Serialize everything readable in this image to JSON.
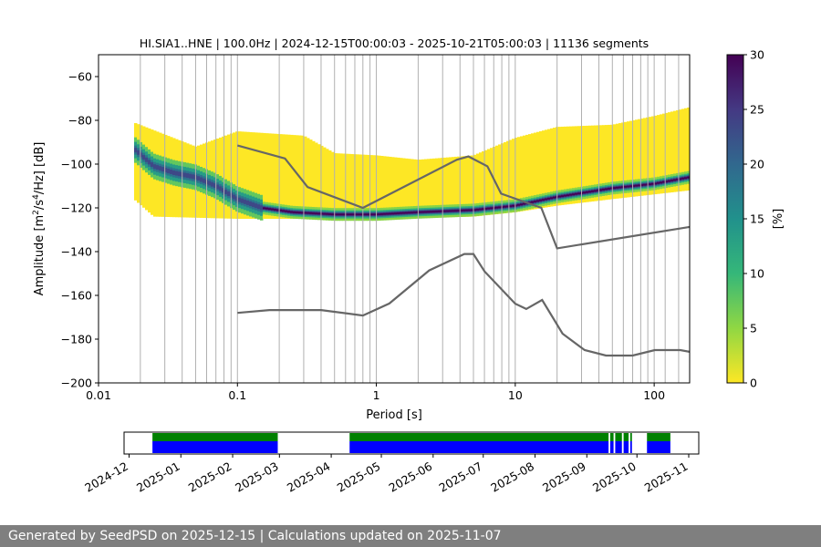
{
  "chart_data": {
    "type": "heatmap",
    "title": "HI.SIA1..HNE | 100.0Hz | 2024-12-15T00:00:03 - 2025-10-21T05:00:03 | 11136 segments",
    "xlabel": "Period [s]",
    "ylabel_main": "Amplitude [m",
    "ylabel_sup1": "2",
    "ylabel_mid": "/s",
    "ylabel_sup2": "4",
    "ylabel_end": "/Hz] [dB]",
    "x_scale": "log",
    "xlim": [
      0.01,
      180
    ],
    "ylim": [
      -200,
      -50
    ],
    "x_ticks": [
      {
        "value": 0.01,
        "label": "0.01"
      },
      {
        "value": 0.1,
        "label": "0.1"
      },
      {
        "value": 1,
        "label": "1"
      },
      {
        "value": 10,
        "label": "10"
      },
      {
        "value": 100,
        "label": "100"
      }
    ],
    "y_ticks": [
      {
        "value": -60,
        "label": "−60"
      },
      {
        "value": -80,
        "label": "−80"
      },
      {
        "value": -100,
        "label": "−100"
      },
      {
        "value": -120,
        "label": "−120"
      },
      {
        "value": -140,
        "label": "−140"
      },
      {
        "value": -160,
        "label": "−160"
      },
      {
        "value": -180,
        "label": "−180"
      },
      {
        "value": -200,
        "label": "−200"
      }
    ],
    "period_gridlines": [
      0.02,
      0.03,
      0.04,
      0.05,
      0.06,
      0.07,
      0.08,
      0.09,
      0.1,
      0.2,
      0.3,
      0.4,
      0.5,
      0.6,
      0.7,
      0.8,
      0.9,
      1,
      2,
      3,
      4,
      5,
      6,
      7,
      8,
      9,
      10,
      20,
      30,
      40,
      50,
      60,
      70,
      80,
      90,
      100,
      120,
      150
    ],
    "psd_density_bands": {
      "period_min": 0.018,
      "period_max": 180,
      "density_unit": "%",
      "mode_curve": [
        {
          "period": 0.018,
          "db": -93
        },
        {
          "period": 0.025,
          "db": -101
        },
        {
          "period": 0.035,
          "db": -104
        },
        {
          "period": 0.05,
          "db": -106
        },
        {
          "period": 0.07,
          "db": -110
        },
        {
          "period": 0.1,
          "db": -116
        },
        {
          "period": 0.15,
          "db": -120
        },
        {
          "period": 0.25,
          "db": -122
        },
        {
          "period": 0.5,
          "db": -123
        },
        {
          "period": 1,
          "db": -123
        },
        {
          "period": 2,
          "db": -122
        },
        {
          "period": 5,
          "db": -121
        },
        {
          "period": 10,
          "db": -119
        },
        {
          "period": 20,
          "db": -115
        },
        {
          "period": 50,
          "db": -111
        },
        {
          "period": 100,
          "db": -109
        },
        {
          "period": 180,
          "db": -106
        }
      ],
      "upper_envelope": [
        {
          "period": 0.018,
          "db": -81
        },
        {
          "period": 0.05,
          "db": -92
        },
        {
          "period": 0.1,
          "db": -85
        },
        {
          "period": 0.3,
          "db": -87
        },
        {
          "period": 0.5,
          "db": -95
        },
        {
          "period": 1,
          "db": -96
        },
        {
          "period": 2,
          "db": -98
        },
        {
          "period": 5,
          "db": -96
        },
        {
          "period": 10,
          "db": -88
        },
        {
          "period": 20,
          "db": -83
        },
        {
          "period": 50,
          "db": -82
        },
        {
          "period": 100,
          "db": -78
        },
        {
          "period": 180,
          "db": -74
        }
      ],
      "lower_envelope": [
        {
          "period": 0.018,
          "db": -116
        },
        {
          "period": 0.025,
          "db": -124
        },
        {
          "period": 0.1,
          "db": -125
        },
        {
          "period": 1,
          "db": -125
        },
        {
          "period": 5,
          "db": -124
        },
        {
          "period": 10,
          "db": -122
        },
        {
          "period": 20,
          "db": -119
        },
        {
          "period": 50,
          "db": -116
        },
        {
          "period": 180,
          "db": -112
        }
      ]
    },
    "nhnm": [
      {
        "period": 0.1,
        "db": -91.5
      },
      {
        "period": 0.22,
        "db": -97.4
      },
      {
        "period": 0.32,
        "db": -110.5
      },
      {
        "period": 0.8,
        "db": -120
      },
      {
        "period": 3.8,
        "db": -98
      },
      {
        "period": 4.6,
        "db": -96.5
      },
      {
        "period": 6.3,
        "db": -101
      },
      {
        "period": 7.9,
        "db": -113.5
      },
      {
        "period": 15.4,
        "db": -120
      },
      {
        "period": 20,
        "db": -138.5
      },
      {
        "period": 180,
        "db": -128.7
      }
    ],
    "nlnm": [
      {
        "period": 0.1,
        "db": -168
      },
      {
        "period": 0.17,
        "db": -166.7
      },
      {
        "period": 0.4,
        "db": -166.7
      },
      {
        "period": 0.8,
        "db": -169.2
      },
      {
        "period": 1.24,
        "db": -163.7
      },
      {
        "period": 2.4,
        "db": -148.6
      },
      {
        "period": 4.3,
        "db": -141.1
      },
      {
        "period": 5,
        "db": -141.1
      },
      {
        "period": 6,
        "db": -149
      },
      {
        "period": 10,
        "db": -163.8
      },
      {
        "period": 12,
        "db": -166.2
      },
      {
        "period": 15.6,
        "db": -162.1
      },
      {
        "period": 21.9,
        "db": -177.5
      },
      {
        "period": 31.6,
        "db": -185
      },
      {
        "period": 45,
        "db": -187.5
      },
      {
        "period": 70,
        "db": -187.5
      },
      {
        "period": 101,
        "db": -185
      },
      {
        "period": 154,
        "db": -185
      },
      {
        "period": 180,
        "db": -185.8
      }
    ],
    "colorbar": {
      "label": "[%]",
      "range": [
        0,
        30
      ],
      "ticks": [
        {
          "value": 0,
          "label": "0"
        },
        {
          "value": 5,
          "label": "5"
        },
        {
          "value": 10,
          "label": "10"
        },
        {
          "value": 15,
          "label": "15"
        },
        {
          "value": 20,
          "label": "20"
        },
        {
          "value": 25,
          "label": "25"
        },
        {
          "value": 30,
          "label": "30"
        }
      ],
      "stops": [
        "#fde725",
        "#90d743",
        "#35b779",
        "#21918c",
        "#31688e",
        "#443983",
        "#440154"
      ]
    },
    "timeline": {
      "start": "2024-11-28",
      "end": "2025-11-07",
      "date_ticks": [
        {
          "date": "2024-12-01",
          "label": "2024-12"
        },
        {
          "date": "2025-01-01",
          "label": "2025-01"
        },
        {
          "date": "2025-02-01",
          "label": "2025-02"
        },
        {
          "date": "2025-03-01",
          "label": "2025-03"
        },
        {
          "date": "2025-04-01",
          "label": "2025-04"
        },
        {
          "date": "2025-05-01",
          "label": "2025-05"
        },
        {
          "date": "2025-06-01",
          "label": "2025-06"
        },
        {
          "date": "2025-07-01",
          "label": "2025-07"
        },
        {
          "date": "2025-08-01",
          "label": "2025-08"
        },
        {
          "date": "2025-09-01",
          "label": "2025-09"
        },
        {
          "date": "2025-10-01",
          "label": "2025-10"
        },
        {
          "date": "2025-11-01",
          "label": "2025-11"
        }
      ],
      "data_available": [
        [
          "2024-12-15",
          "2025-02-28"
        ],
        [
          "2025-04-12",
          "2025-09-14"
        ],
        [
          "2025-09-15",
          "2025-09-17"
        ],
        [
          "2025-09-18",
          "2025-09-22"
        ],
        [
          "2025-09-23",
          "2025-09-26"
        ],
        [
          "2025-09-27",
          "2025-09-28"
        ],
        [
          "2025-10-07",
          "2025-10-21"
        ]
      ],
      "psd_available": [
        [
          "2024-12-15",
          "2025-02-28"
        ],
        [
          "2025-04-12",
          "2025-09-14"
        ],
        [
          "2025-09-15",
          "2025-09-17"
        ],
        [
          "2025-09-18",
          "2025-09-22"
        ],
        [
          "2025-09-23",
          "2025-09-26"
        ],
        [
          "2025-09-27",
          "2025-09-28"
        ],
        [
          "2025-10-07",
          "2025-10-21"
        ]
      ],
      "data_color": "#0000ff",
      "psd_color": "#008000"
    }
  },
  "colors": {
    "model_line": "#666666",
    "grid": "#b0b0b0",
    "footer_bg": "#7f7f7f"
  },
  "footer": {
    "text": "Generated by SeedPSD on 2025-12-15 | Calculations updated on 2025-11-07"
  }
}
